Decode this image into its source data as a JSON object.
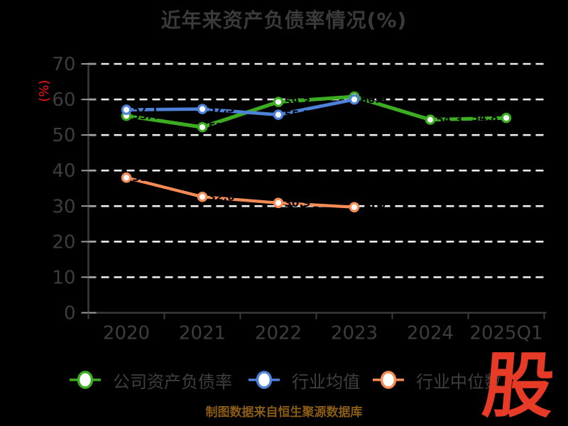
{
  "title": "近年来资产负债率情况(%)",
  "y_axis_label": "(%)",
  "caption": "制图数据来自恒生聚源数据库",
  "logo_text": "股",
  "colors": {
    "background": "#000000",
    "title_text": "#3a3a3a",
    "axis_text": "#3d3d3d",
    "axis_line": "#3b3b3b",
    "tick_mark": "#9a9a9a",
    "grid": "#ececec",
    "y_axis_label": "#ff1010",
    "caption": "#8a5c15",
    "logo": "#e73b28",
    "legend_text": "#3f3f3f",
    "marker_fill": "#ffffff",
    "point_label": "#000000",
    "series_green": "#3cad21",
    "series_blue": "#4d82d9",
    "series_orange": "#f58b55"
  },
  "legend": {
    "items": [
      {
        "id": "company",
        "label": "公司资产负债率",
        "color": "#3cad21"
      },
      {
        "id": "industry-mean",
        "label": "行业均值",
        "color": "#4d82d9"
      },
      {
        "id": "industry-median",
        "label": "行业中位数",
        "color": "#f58b55"
      }
    ]
  },
  "chart_data": {
    "type": "line",
    "title": "近年来资产负债率情况(%)",
    "xlabel": "",
    "ylabel": "(%)",
    "categories": [
      "2020",
      "2021",
      "2022",
      "2023",
      "2024",
      "2025Q1"
    ],
    "series": [
      {
        "id": "company",
        "name": "公司资产负债率",
        "color": "#3cad21",
        "values": [
          55.4,
          52.2,
          59.3,
          60.8,
          54.3,
          54.8
        ]
      },
      {
        "id": "industry-mean",
        "name": "行业均值",
        "color": "#4d82d9",
        "values": [
          57.1,
          57.3,
          55.7,
          60.0,
          null,
          null
        ]
      },
      {
        "id": "industry-median",
        "name": "行业中位数",
        "color": "#f58b55",
        "values": [
          38.0,
          32.6,
          30.9,
          29.7,
          null,
          null
        ]
      }
    ],
    "ylim": [
      0,
      70
    ],
    "yticks": [
      0,
      10,
      20,
      30,
      40,
      50,
      60,
      70
    ],
    "grid": true,
    "grid_style": "dashed",
    "legend_position": "bottom",
    "point_labels_color": "#000000"
  }
}
